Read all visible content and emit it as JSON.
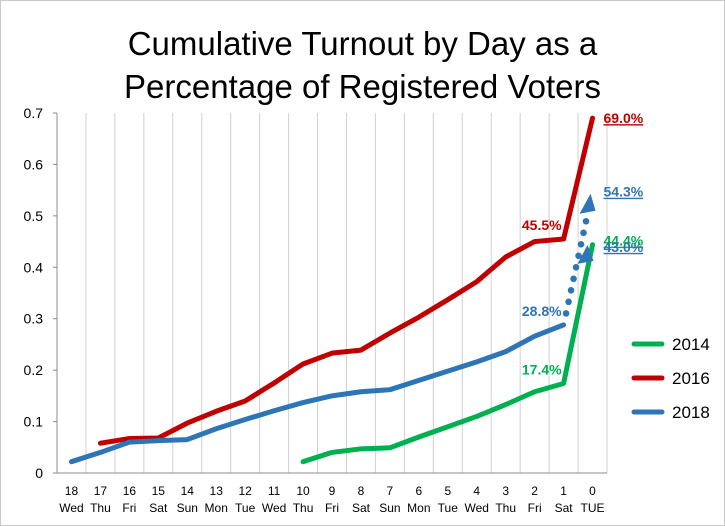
{
  "chart_data": {
    "type": "line",
    "title_line1": "Cumulative Turnout by Day as a",
    "title_line2": "Percentage of Registered Voters",
    "xlabel": "",
    "ylabel": "",
    "ylim": [
      0,
      0.7
    ],
    "y_ticks": [
      "0",
      "0.1",
      "0.2",
      "0.3",
      "0.4",
      "0.5",
      "0.6",
      "0.7"
    ],
    "grid": "vertical",
    "legend_position": "right",
    "x_days": [
      "18",
      "17",
      "16",
      "15",
      "14",
      "13",
      "12",
      "11",
      "10",
      "9",
      "8",
      "7",
      "6",
      "5",
      "4",
      "3",
      "2",
      "1",
      "0"
    ],
    "x_weekdays": [
      "Wed",
      "Thu",
      "Fri",
      "Sat",
      "Sun",
      "Mon",
      "Tue",
      "Wed",
      "Thu",
      "Fri",
      "Sat",
      "Sun",
      "Mon",
      "Tue",
      "Wed",
      "Thu",
      "Fri",
      "Sat",
      "TUE"
    ],
    "series": [
      {
        "name": "2014",
        "color": "#00b050",
        "values": [
          null,
          null,
          null,
          null,
          null,
          null,
          null,
          null,
          0.022,
          0.04,
          0.047,
          0.049,
          0.07,
          0.09,
          0.11,
          0.133,
          0.158,
          0.174,
          0.444
        ]
      },
      {
        "name": "2016",
        "color": "#c00000",
        "values": [
          null,
          0.058,
          0.067,
          0.068,
          0.097,
          0.12,
          0.14,
          0.175,
          0.212,
          0.233,
          0.239,
          0.272,
          0.303,
          0.337,
          0.372,
          0.42,
          0.45,
          0.455,
          0.69
        ]
      },
      {
        "name": "2018",
        "color": "#2e75b6",
        "values": [
          0.022,
          0.04,
          0.06,
          0.063,
          0.065,
          0.086,
          0.104,
          0.121,
          0.137,
          0.15,
          0.158,
          0.162,
          0.18,
          0.198,
          0.216,
          0.236,
          0.266,
          0.288,
          null
        ],
        "projection_end": 0.543
      }
    ],
    "data_labels": [
      {
        "text": "69.0%",
        "series": "2016",
        "x_index": 18,
        "value": 0.69,
        "side": "right",
        "underline": true
      },
      {
        "text": "45.5%",
        "series": "2016",
        "x_index": 17,
        "value": 0.455,
        "side": "left",
        "underline": false
      },
      {
        "text": "54.3%",
        "series": "2018",
        "x_index": 18,
        "value": 0.543,
        "side": "right",
        "underline": true
      },
      {
        "text": "28.8%",
        "series": "2018",
        "x_index": 17,
        "value": 0.288,
        "side": "left",
        "underline": false
      },
      {
        "text": "44.4%",
        "series": "2014",
        "x_index": 18,
        "value": 0.444,
        "side": "right",
        "underline": true
      },
      {
        "text": "43.0%",
        "series": "2018",
        "x_index": 18,
        "value": 0.43,
        "side": "right",
        "underline": true
      },
      {
        "text": "17.4%",
        "series": "2014",
        "x_index": 17,
        "value": 0.174,
        "side": "left",
        "underline": false
      }
    ]
  }
}
